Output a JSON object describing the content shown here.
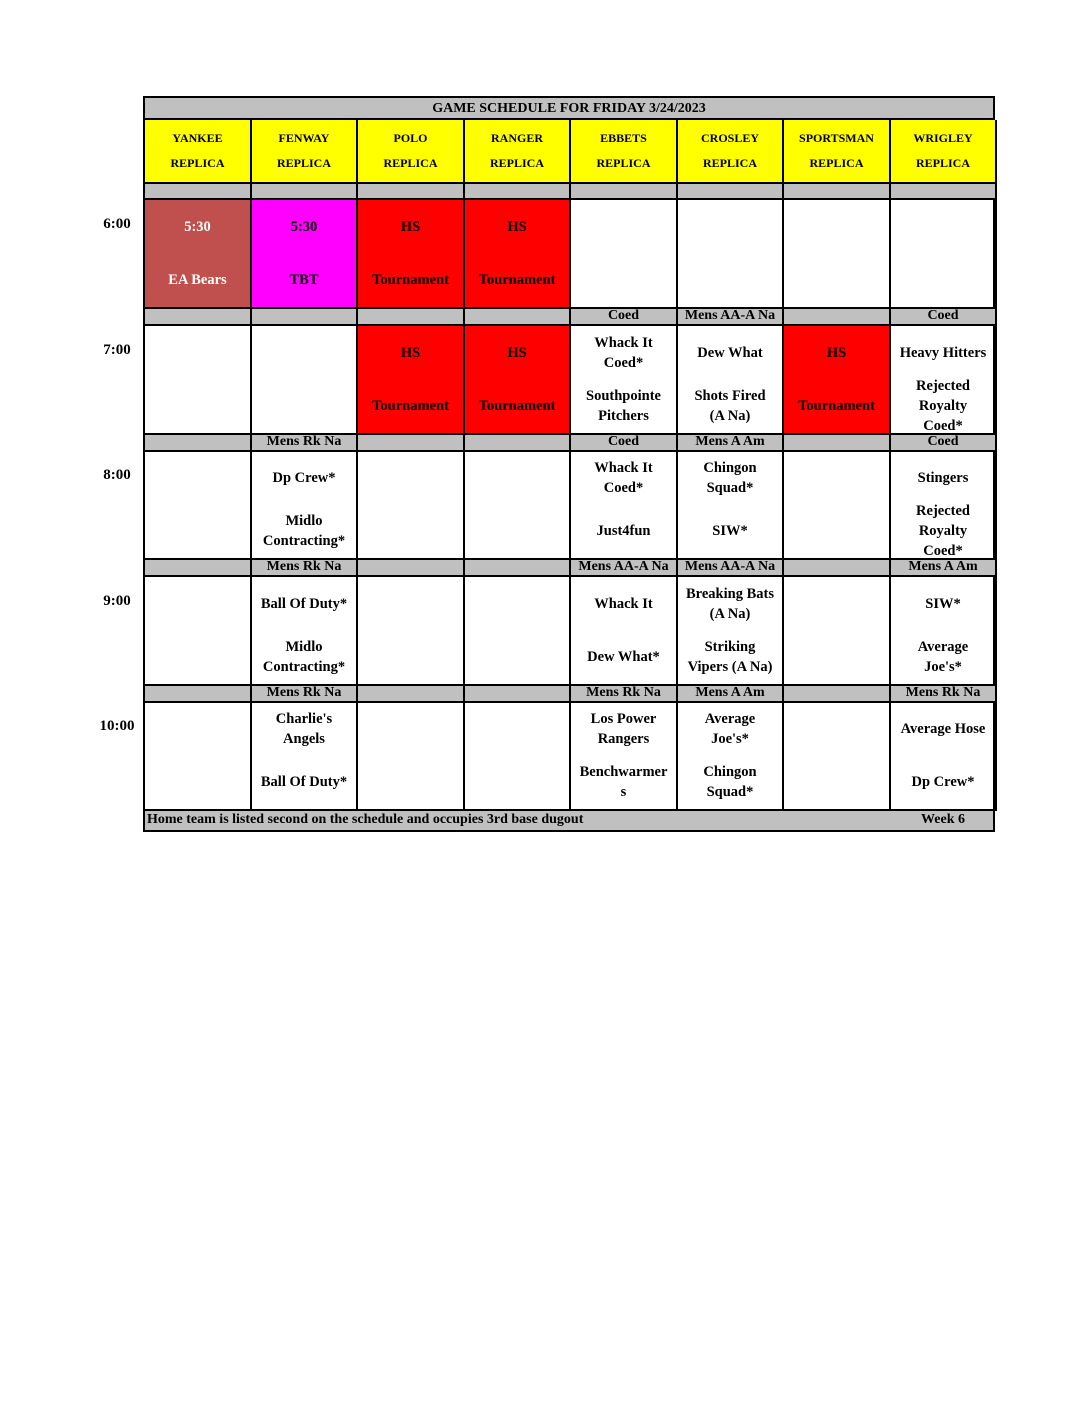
{
  "title": "GAME SCHEDULE FOR FRIDAY 3/24/2023",
  "fields": [
    {
      "name": "YANKEE",
      "sub": "REPLICA"
    },
    {
      "name": "FENWAY",
      "sub": "REPLICA"
    },
    {
      "name": "POLO",
      "sub": "REPLICA"
    },
    {
      "name": "RANGER",
      "sub": "REPLICA"
    },
    {
      "name": "EBBETS",
      "sub": "REPLICA"
    },
    {
      "name": "CROSLEY",
      "sub": "REPLICA"
    },
    {
      "name": "SPORTSMAN",
      "sub": "REPLICA"
    },
    {
      "name": "WRIGLEY",
      "sub": "REPLICA"
    }
  ],
  "colors": {
    "header": "#ffff00",
    "divider": "#c0c0c0",
    "yankee_530": "#c0504d",
    "fenway_530": "#ff00ff",
    "tournament": "#ff0000"
  },
  "slots": [
    {
      "time": "6:00",
      "divisions": [
        "",
        "",
        "",
        "",
        "",
        "",
        "",
        ""
      ],
      "cells": [
        {
          "top": "5:30",
          "bottom": "EA Bears",
          "bg": "#c0504d",
          "color": "#ffffff"
        },
        {
          "top": "5:30",
          "bottom": "TBT",
          "bg": "#ff00ff"
        },
        {
          "top": "HS",
          "bottom": "Tournament",
          "bg": "#ff0000"
        },
        {
          "top": "HS",
          "bottom": "Tournament",
          "bg": "#ff0000"
        },
        {
          "top": "",
          "bottom": ""
        },
        {
          "top": "",
          "bottom": ""
        },
        {
          "top": "",
          "bottom": ""
        },
        {
          "top": "",
          "bottom": ""
        }
      ]
    },
    {
      "time": "7:00",
      "divisions": [
        "",
        "",
        "",
        "",
        "Coed",
        "Mens AA-A Na",
        "",
        "Coed"
      ],
      "cells": [
        {
          "top": "",
          "bottom": ""
        },
        {
          "top": "",
          "bottom": ""
        },
        {
          "top": "HS",
          "bottom": "Tournament",
          "bg": "#ff0000"
        },
        {
          "top": "HS",
          "bottom": "Tournament",
          "bg": "#ff0000"
        },
        {
          "top": "Whack It\nCoed*",
          "bottom": "Southpointe\nPitchers"
        },
        {
          "top": "Dew What",
          "bottom": "Shots Fired\n(A Na)"
        },
        {
          "top": "HS",
          "bottom": "Tournament",
          "bg": "#ff0000"
        },
        {
          "top": "Heavy Hitters",
          "bottom": "Rejected\nRoyalty\nCoed*"
        }
      ]
    },
    {
      "time": "8:00",
      "divisions": [
        "",
        "Mens Rk Na",
        "",
        "",
        "Coed",
        "Mens A Am",
        "",
        "Coed"
      ],
      "cells": [
        {
          "top": "",
          "bottom": ""
        },
        {
          "top": "Dp Crew*",
          "bottom": "Midlo\nContracting*"
        },
        {
          "top": "",
          "bottom": ""
        },
        {
          "top": "",
          "bottom": ""
        },
        {
          "top": "Whack It\nCoed*",
          "bottom": "Just4fun"
        },
        {
          "top": "Chingon\nSquad*",
          "bottom": "SIW*"
        },
        {
          "top": "",
          "bottom": ""
        },
        {
          "top": "Stingers",
          "bottom": "Rejected\nRoyalty\nCoed*"
        }
      ]
    },
    {
      "time": "9:00",
      "divisions": [
        "",
        "Mens Rk Na",
        "",
        "",
        "Mens AA-A Na",
        "Mens AA-A Na",
        "",
        "Mens A Am"
      ],
      "cells": [
        {
          "top": "",
          "bottom": ""
        },
        {
          "top": "Ball Of Duty*",
          "bottom": "Midlo\nContracting*"
        },
        {
          "top": "",
          "bottom": ""
        },
        {
          "top": "",
          "bottom": ""
        },
        {
          "top": "Whack It",
          "bottom": "Dew What*"
        },
        {
          "top": "Breaking Bats\n(A Na)",
          "bottom": "Striking\nVipers (A Na)"
        },
        {
          "top": "",
          "bottom": ""
        },
        {
          "top": "SIW*",
          "bottom": "Average\nJoe's*"
        }
      ]
    },
    {
      "time": "10:00",
      "divisions": [
        "",
        "Mens Rk Na",
        "",
        "",
        "Mens Rk Na",
        "Mens A Am",
        "",
        "Mens Rk Na"
      ],
      "cells": [
        {
          "top": "",
          "bottom": ""
        },
        {
          "top": "Charlie's\nAngels",
          "bottom": "Ball Of Duty*"
        },
        {
          "top": "",
          "bottom": ""
        },
        {
          "top": "",
          "bottom": ""
        },
        {
          "top": "Los Power\nRangers",
          "bottom": "Benchwarmer\ns"
        },
        {
          "top": "Average\nJoe's*",
          "bottom": "Chingon\nSquad*"
        },
        {
          "top": "",
          "bottom": ""
        },
        {
          "top": "Average Hose",
          "bottom": "Dp Crew*"
        }
      ]
    }
  ],
  "footer": {
    "note": "Home team is listed second on the schedule and occupies 3rd base dugout",
    "week": "Week 6"
  }
}
